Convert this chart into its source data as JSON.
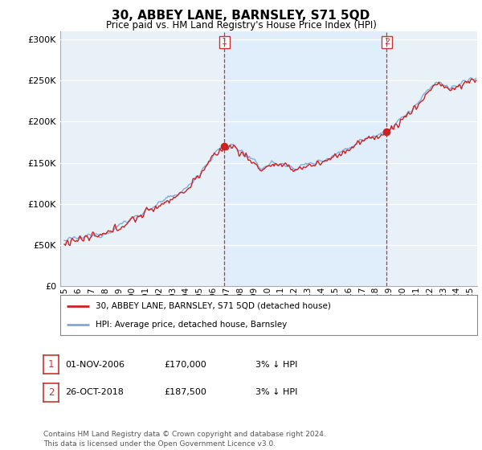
{
  "title": "30, ABBEY LANE, BARNSLEY, S71 5QD",
  "subtitle": "Price paid vs. HM Land Registry's House Price Index (HPI)",
  "legend_line1": "30, ABBEY LANE, BARNSLEY, S71 5QD (detached house)",
  "legend_line2": "HPI: Average price, detached house, Barnsley",
  "annotation1_label": "1",
  "annotation1_date": "01-NOV-2006",
  "annotation1_price": "£170,000",
  "annotation1_hpi": "3% ↓ HPI",
  "annotation1_year": 2006.83,
  "annotation1_value": 170000,
  "annotation2_label": "2",
  "annotation2_date": "26-OCT-2018",
  "annotation2_price": "£187,500",
  "annotation2_hpi": "3% ↓ HPI",
  "annotation2_year": 2018.82,
  "annotation2_value": 187500,
  "footer": "Contains HM Land Registry data © Crown copyright and database right 2024.\nThis data is licensed under the Open Government Licence v3.0.",
  "hpi_color": "#7aaadd",
  "price_color": "#cc2222",
  "vline_color": "#cc3333",
  "shade_color": "#ddeeff",
  "plot_bg": "#e8f0f8",
  "white_bg": "#ffffff",
  "ylim": [
    0,
    310000
  ],
  "yticks": [
    0,
    50000,
    100000,
    150000,
    200000,
    250000,
    300000
  ],
  "xlim_start": 1994.7,
  "xlim_end": 2025.5,
  "title_fontsize": 11,
  "subtitle_fontsize": 8.5,
  "tick_fontsize": 8
}
